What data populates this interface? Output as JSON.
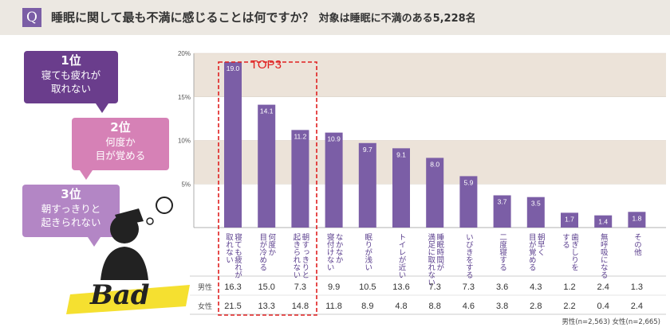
{
  "header": {
    "q_icon": "Q",
    "title": "睡眠に関して最も不満に感じることは何ですか？",
    "subtitle": "対象は睡眠に不満のある5,228名"
  },
  "rank_bubbles": [
    {
      "rank": "1位",
      "line1": "寝ても疲れが",
      "line2": "取れない",
      "color": "#6a3d8c"
    },
    {
      "rank": "2位",
      "line1": "何度か",
      "line2": "目が覚める",
      "color": "#d681b6"
    },
    {
      "rank": "3位",
      "line1": "朝すっきりと",
      "line2": "起きられない",
      "color": "#b386c5"
    }
  ],
  "highlight_label": "TOP3",
  "logo_text": "Bad",
  "colors": {
    "bar": "#7b5ea6",
    "highlight": "#e02020",
    "band": "#ece3d9",
    "accent": "#7b5ea6"
  },
  "chart_data": {
    "type": "bar",
    "ylim": [
      0,
      20
    ],
    "yticks": [
      "20%",
      "15%",
      "10%",
      "5%"
    ],
    "ytick_values": [
      20,
      15,
      10,
      5
    ],
    "categories": [
      [
        "寝ても疲れが",
        "取れない"
      ],
      [
        "何度か",
        "目が冷める"
      ],
      [
        "朝すっきりと",
        "起きられない"
      ],
      [
        "なかなか",
        "寝付けない"
      ],
      [
        "眠りが浅い"
      ],
      [
        "トイレが近い"
      ],
      [
        "睡眠時間が",
        "満足に取れない"
      ],
      [
        "いびきをする"
      ],
      [
        "二度寝する"
      ],
      [
        "朝早く",
        "目が覚める"
      ],
      [
        "歯ぎしりを",
        "する"
      ],
      [
        "無呼吸になる"
      ],
      [
        "その他"
      ]
    ],
    "values": [
      19.0,
      14.1,
      11.2,
      10.9,
      9.7,
      9.1,
      8.0,
      5.9,
      3.7,
      3.5,
      1.7,
      1.4,
      1.8
    ],
    "value_labels": [
      "19.0",
      "14.1",
      "11.2",
      "10.9",
      "9.7",
      "9.1",
      "8.0",
      "5.9",
      "3.7",
      "3.5",
      "1.7",
      "1.4",
      "1.8"
    ],
    "table": {
      "rows": [
        {
          "label": "男性",
          "values": [
            "16.3",
            "15.0",
            "7.3",
            "9.9",
            "10.5",
            "13.6",
            "7.3",
            "7.3",
            "3.6",
            "4.3",
            "1.2",
            "2.4",
            "1.3"
          ]
        },
        {
          "label": "女性",
          "values": [
            "21.5",
            "13.3",
            "14.8",
            "11.8",
            "8.9",
            "4.8",
            "8.8",
            "4.6",
            "3.8",
            "2.8",
            "2.2",
            "0.4",
            "2.4"
          ]
        }
      ]
    },
    "footnote": "男性(n=2,563)  女性(n=2,665)"
  }
}
